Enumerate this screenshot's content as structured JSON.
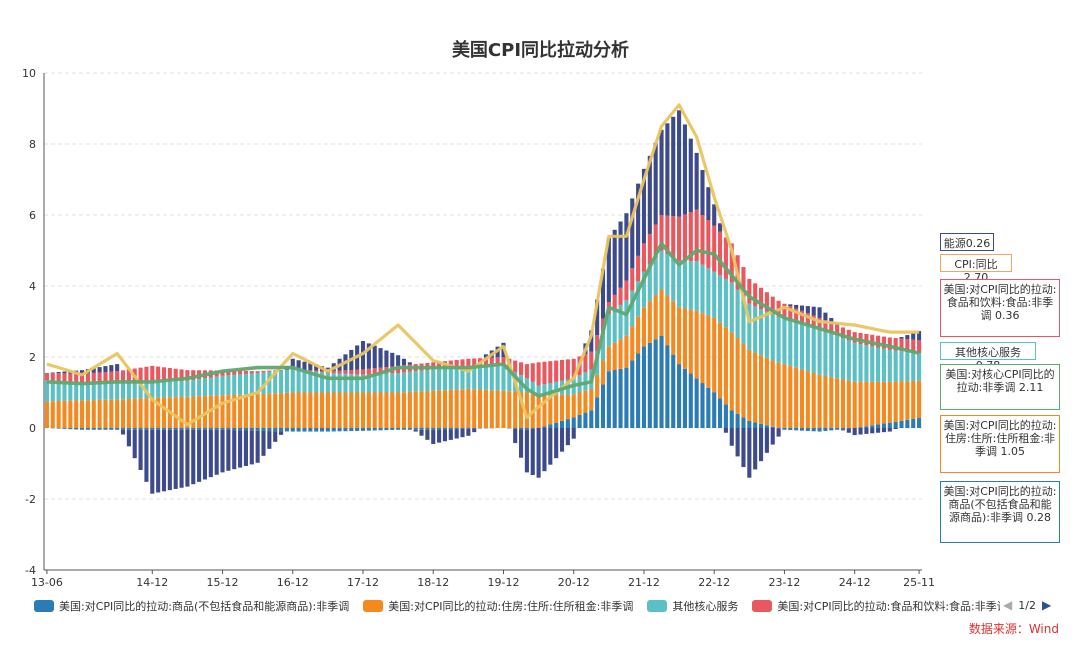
{
  "page": {
    "title": "美国CPI同比拉动分析",
    "source": "数据来源：Wind",
    "pager": "1/2"
  },
  "legend": [
    {
      "label": "美国:对CPI同比的拉动:商品(不包括食品和能源商品):非季调",
      "color": "#2b7bb4"
    },
    {
      "label": "美国:对CPI同比的拉动:住房:住所:住所租金:非季调",
      "color": "#f48a1f"
    },
    {
      "label": "其他核心服务",
      "color": "#5bc0c3"
    },
    {
      "label": "美国:对CPI同比的拉动:食品和饮料:食品:非季调",
      "color": "#e8585e"
    }
  ],
  "callouts": [
    {
      "text": "能源0.26",
      "color": "#3d4a8c"
    },
    {
      "text": "CPI:同比2.70",
      "color": "#f0a860"
    },
    {
      "text": "美国:对CPI同比的拉动:食品和饮料:食品:非季调 0.36",
      "color": "#e8585e"
    },
    {
      "text": "其他核心服务0.78",
      "color": "#5bc0c3"
    },
    {
      "text": "美国:对核心CPI同比的拉动:非季调 2.11",
      "color": "#5fa870"
    },
    {
      "text": "美国:对CPI同比的拉动:住房:住所:住所租金:非季调 1.05",
      "color": "#f48a1f"
    },
    {
      "text": "美国:对CPI同比的拉动:商品(不包括食品和能源商品):非季调 0.28",
      "color": "#2b7bb4"
    }
  ],
  "chart_data": {
    "type": "bar",
    "stacked": true,
    "title": "美国CPI同比拉动分析",
    "ylim": [
      -4,
      10
    ],
    "yticks": [
      -4,
      -2,
      0,
      2,
      4,
      6,
      8,
      10
    ],
    "xticks": [
      "13-06",
      "14-12",
      "15-12",
      "16-12",
      "17-12",
      "18-12",
      "19-12",
      "20-12",
      "21-12",
      "22-12",
      "23-12",
      "24-12",
      "25-11"
    ],
    "x_range": [
      "2013-06",
      "2025-11"
    ],
    "series_sampling": "quarterly anchor points (approximate), interpolated monthly for display",
    "anchor_dates": [
      "2013-06",
      "2013-12",
      "2014-06",
      "2014-12",
      "2015-06",
      "2015-12",
      "2016-06",
      "2016-12",
      "2017-06",
      "2017-12",
      "2018-06",
      "2018-12",
      "2019-06",
      "2019-12",
      "2020-04",
      "2020-06",
      "2020-12",
      "2021-03",
      "2021-06",
      "2021-09",
      "2021-12",
      "2022-03",
      "2022-06",
      "2022-09",
      "2022-12",
      "2023-03",
      "2023-06",
      "2023-12",
      "2024-06",
      "2024-12",
      "2025-06",
      "2025-11"
    ],
    "series": [
      {
        "name": "美国:对CPI同比的拉动:商品(不包括食品和能源商品):非季调",
        "color": "#2b7bb4",
        "values": [
          0.0,
          -0.05,
          -0.05,
          -0.05,
          -0.05,
          -0.05,
          -0.08,
          -0.1,
          -0.1,
          -0.08,
          -0.05,
          -0.05,
          -0.02,
          0.0,
          -0.05,
          0.0,
          0.3,
          0.5,
          1.6,
          1.7,
          2.3,
          2.6,
          1.8,
          1.4,
          1.0,
          0.5,
          0.2,
          -0.05,
          -0.1,
          0.0,
          0.15,
          0.28
        ]
      },
      {
        "name": "美国:对CPI同比的拉动:住房:住所:住所租金:非季调",
        "color": "#f48a1f",
        "values": [
          0.75,
          0.78,
          0.8,
          0.85,
          0.88,
          0.92,
          0.95,
          1.0,
          1.0,
          1.0,
          1.0,
          1.05,
          1.1,
          1.05,
          1.0,
          0.9,
          0.65,
          0.6,
          0.7,
          0.9,
          1.1,
          1.3,
          1.6,
          1.9,
          2.1,
          2.2,
          2.0,
          1.8,
          1.5,
          1.3,
          1.15,
          1.05
        ]
      },
      {
        "name": "其他核心服务",
        "color": "#5bc0c3",
        "values": [
          0.6,
          0.5,
          0.45,
          0.45,
          0.45,
          0.55,
          0.6,
          0.65,
          0.55,
          0.5,
          0.55,
          0.6,
          0.65,
          0.7,
          0.4,
          0.3,
          0.45,
          0.55,
          0.9,
          1.0,
          1.0,
          1.1,
          1.3,
          1.4,
          1.3,
          1.4,
          1.3,
          1.3,
          1.3,
          1.1,
          0.9,
          0.78
        ]
      },
      {
        "name": "美国:对CPI同比的拉动:食品和饮料:食品:非季调",
        "color": "#e8585e",
        "values": [
          0.2,
          0.25,
          0.35,
          0.45,
          0.3,
          0.15,
          0.05,
          0.0,
          0.05,
          0.15,
          0.2,
          0.2,
          0.2,
          0.25,
          0.4,
          0.65,
          0.55,
          0.5,
          0.35,
          0.55,
          0.8,
          1.0,
          1.25,
          1.45,
          1.3,
          1.1,
          0.7,
          0.4,
          0.3,
          0.3,
          0.35,
          0.36
        ]
      },
      {
        "name": "能源",
        "color": "#3d4a8c",
        "values": [
          0.0,
          0.1,
          0.2,
          -1.8,
          -1.6,
          -1.2,
          -0.9,
          0.3,
          0.1,
          0.8,
          0.3,
          -0.4,
          -0.2,
          0.4,
          -1.2,
          -1.4,
          -0.3,
          0.6,
          1.8,
          1.9,
          2.1,
          2.4,
          3.0,
          1.6,
          0.6,
          -0.5,
          -1.4,
          0.0,
          0.3,
          -0.2,
          -0.1,
          0.26
        ]
      }
    ],
    "lines": [
      {
        "name": "CPI:同比",
        "color": "#e8c560",
        "values": [
          1.8,
          1.5,
          2.1,
          0.8,
          0.1,
          0.7,
          1.0,
          2.1,
          1.6,
          2.1,
          2.9,
          1.9,
          1.6,
          2.3,
          0.3,
          0.6,
          1.4,
          2.6,
          5.4,
          5.4,
          7.0,
          8.5,
          9.1,
          8.2,
          6.5,
          5.0,
          3.0,
          3.4,
          3.0,
          2.9,
          2.7,
          2.7
        ]
      },
      {
        "name": "美国:对核心CPI同比的拉动:非季调",
        "color": "#5fa870",
        "values": [
          1.3,
          1.25,
          1.3,
          1.3,
          1.4,
          1.6,
          1.7,
          1.7,
          1.4,
          1.4,
          1.7,
          1.7,
          1.7,
          1.8,
          1.1,
          0.9,
          1.2,
          1.3,
          3.4,
          3.2,
          4.2,
          5.2,
          4.6,
          5.0,
          4.9,
          4.3,
          3.7,
          3.1,
          2.8,
          2.5,
          2.3,
          2.11
        ]
      }
    ]
  }
}
